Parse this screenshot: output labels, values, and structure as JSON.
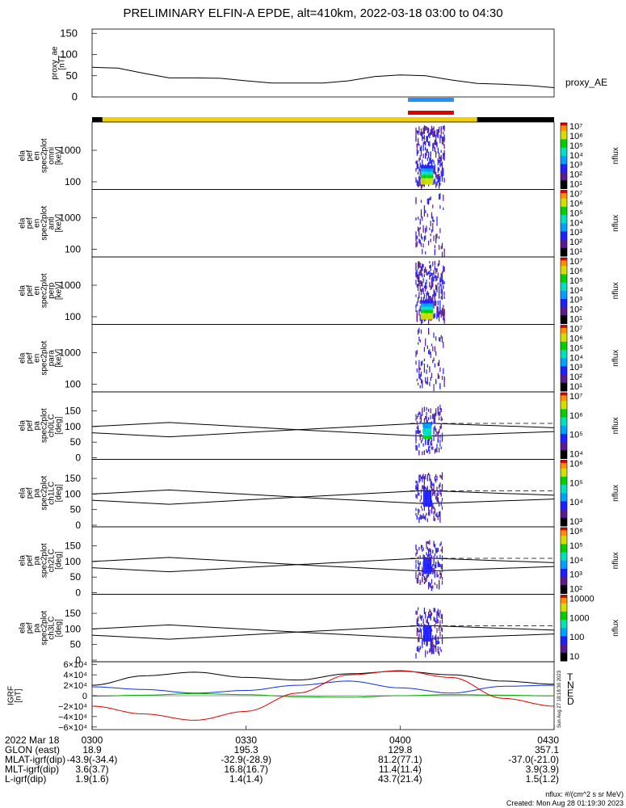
{
  "title": "PRELIMINARY ELFIN-A EPDE, alt=410km, 2022-03-18 03:00 to 04:30",
  "colors": {
    "sunlight_bar": "#f5d000",
    "shadow_bar": "#000000",
    "north_bar": "#1e90ff",
    "south_bar": "#e00000",
    "igrf_T": "#000000",
    "igrf_N": "#1030e0",
    "igrf_E": "#00b000",
    "igrf_D": "#e00000"
  },
  "proxy_panel": {
    "ylabel": [
      "proxy_ae",
      "[nT]"
    ],
    "yticks": [
      "150",
      "100",
      "50",
      "0"
    ],
    "right_label": "proxy_AE"
  },
  "spec_panels": [
    {
      "ylabel": [
        "ela",
        "pef",
        "en",
        "spec2plot",
        "omni",
        "[keV]"
      ],
      "yticks": [
        "1000",
        "100"
      ],
      "cbar_ticks": [
        "10⁷",
        "10⁶",
        "10⁵",
        "10⁴",
        "10³",
        "10²",
        "10¹"
      ],
      "cbar_label": "nflux"
    },
    {
      "ylabel": [
        "ela",
        "pef",
        "en",
        "spec2plot",
        "anti",
        "[keV]"
      ],
      "yticks": [
        "1000",
        "100"
      ],
      "cbar_ticks": [
        "10⁷",
        "10⁶",
        "10⁵",
        "10⁴",
        "10³",
        "10²",
        "10¹"
      ],
      "cbar_label": "nflux"
    },
    {
      "ylabel": [
        "ela",
        "pef",
        "en",
        "spec2plot",
        "perp",
        "[keV]"
      ],
      "yticks": [
        "1000",
        "100"
      ],
      "cbar_ticks": [
        "10⁷",
        "10⁶",
        "10⁵",
        "10⁴",
        "10³",
        "10²",
        "10¹"
      ],
      "cbar_label": "nflux"
    },
    {
      "ylabel": [
        "ela",
        "pef",
        "en",
        "spec2plot",
        "para",
        "[keV]"
      ],
      "yticks": [
        "1000",
        "100"
      ],
      "cbar_ticks": [
        "10⁷",
        "10⁶",
        "10⁵",
        "10⁴",
        "10³",
        "10²",
        "10¹"
      ],
      "cbar_label": "nflux"
    }
  ],
  "pa_panels": [
    {
      "ylabel": [
        "ela",
        "pef",
        "pa",
        "spec2plot",
        "ch0LC",
        "[deg]"
      ],
      "yticks": [
        "150",
        "100",
        "50",
        "0"
      ],
      "cbar_ticks": [
        "10⁷",
        "10⁶",
        "10⁵",
        "10⁴"
      ],
      "cbar_label": "nflux"
    },
    {
      "ylabel": [
        "ela",
        "pef",
        "pa",
        "spec2plot",
        "ch1LC",
        "[deg]"
      ],
      "yticks": [
        "150",
        "100",
        "50",
        "0"
      ],
      "cbar_ticks": [
        "10⁶",
        "10⁵",
        "10⁴",
        "10³"
      ],
      "cbar_label": "nflux"
    },
    {
      "ylabel": [
        "ela",
        "pef",
        "pa",
        "spec2plot",
        "ch2LC",
        "[deg]"
      ],
      "yticks": [
        "150",
        "100",
        "50",
        "0"
      ],
      "cbar_ticks": [
        "10⁶",
        "10⁵",
        "10⁴",
        "10³",
        "10²"
      ],
      "cbar_label": "nflux"
    },
    {
      "ylabel": [
        "ela",
        "pef",
        "pa",
        "spec2plot",
        "ch3LC",
        "[deg]"
      ],
      "yticks": [
        "150",
        "100",
        "50",
        "0"
      ],
      "cbar_ticks": [
        "10000",
        "1000",
        "100",
        "10"
      ],
      "cbar_label": "nflux"
    }
  ],
  "igrf_panel": {
    "ylabel": [
      "IGRF",
      "[nT]"
    ],
    "yticks": [
      "6×10⁴",
      "4×10⁴",
      "2×10⁴",
      "0",
      "−2×10⁴",
      "−4×10⁴",
      "−6×10⁴"
    ],
    "legend": [
      "T",
      "N",
      "E",
      "D"
    ],
    "side_note": "Sun Aug 27 18:18:30 2023"
  },
  "bottom_table": {
    "rows": [
      {
        "label": "2022 Mar 18",
        "values": [
          "0300",
          "0330",
          "0400",
          "0430"
        ]
      },
      {
        "label": "GLON (east)",
        "values": [
          "18.9",
          "195.3",
          "129.8",
          "357.1"
        ]
      },
      {
        "label": "MLAT-igrf(dip)",
        "values": [
          "-43.9(-34.4)",
          "-32.9(-28.9)",
          "81.2(77.1)",
          "-37.0(-21.0)"
        ]
      },
      {
        "label": "MLT-igrf(dip)",
        "values": [
          "3.6(3.7)",
          "16.8(16.7)",
          "11.4(11.4)",
          "3.9(3.9)"
        ]
      },
      {
        "label": "L-igrf(dip)",
        "values": [
          "1.9(1.6)",
          "1.4(1.4)",
          "43.7(21.4)",
          "1.5(1.2)"
        ]
      }
    ]
  },
  "footer": {
    "units": "nflux: #/(cm^2 s sr MeV)",
    "created": "Created: Mon Aug 28 01:19:30 2023"
  },
  "chart_data": {
    "type": "line",
    "x_range": [
      "03:00",
      "04:30"
    ],
    "x_ticks": [
      "0300",
      "0330",
      "0400",
      "0430"
    ],
    "proxy_ae": {
      "ylim": [
        0,
        160
      ],
      "x_minutes": [
        0,
        5,
        10,
        15,
        20,
        25,
        30,
        35,
        40,
        45,
        50,
        55,
        60,
        65,
        70,
        75,
        80,
        85,
        90
      ],
      "values": [
        70,
        68,
        56,
        45,
        45,
        44,
        38,
        33,
        33,
        33,
        38,
        48,
        52,
        50,
        40,
        32,
        30,
        27,
        22
      ]
    },
    "science_interval_minutes": [
      62.0,
      70.0
    ],
    "sunlight_interval_minutes": [
      2.0,
      75.0
    ],
    "igrf": {
      "ylim": [
        -65000,
        65000
      ],
      "x_minutes": [
        0,
        10,
        20,
        30,
        40,
        50,
        60,
        70,
        80,
        90
      ],
      "series": [
        {
          "name": "T",
          "values": [
            20000,
            38000,
            45000,
            35000,
            30000,
            42000,
            47000,
            40000,
            28000,
            22000
          ]
        },
        {
          "name": "N",
          "values": [
            17000,
            12000,
            5000,
            10000,
            20000,
            28000,
            15000,
            5000,
            18000,
            20000
          ]
        },
        {
          "name": "E",
          "values": [
            -1000,
            1000,
            4000,
            2000,
            -2000,
            -3000,
            0,
            2000,
            1000,
            -500
          ]
        },
        {
          "name": "D",
          "values": [
            -20000,
            -35000,
            -47000,
            -30000,
            5000,
            40000,
            48000,
            35000,
            -5000,
            -20000
          ]
        }
      ]
    },
    "pa_loss_cone_deg": {
      "x_minutes": [
        0,
        15,
        40,
        65,
        90
      ],
      "values": [
        100,
        113,
        90,
        69,
        84
      ]
    },
    "pa_anti_loss_cone_deg": {
      "x_minutes": [
        0,
        15,
        40,
        65,
        90
      ],
      "values": [
        80,
        67,
        90,
        111,
        96
      ]
    }
  }
}
